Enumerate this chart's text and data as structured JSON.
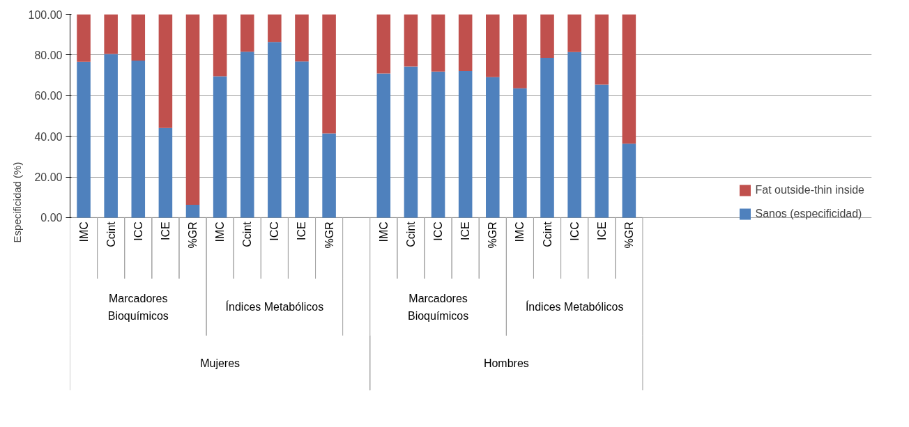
{
  "chart_data": {
    "type": "bar",
    "stacked": true,
    "ylabel": "Especificidad (%)",
    "categories": [
      "IMC",
      "Ccint",
      "ICC",
      "ICE",
      "%GR",
      "IMC",
      "Ccint",
      "ICC",
      "ICE",
      "%GR",
      null,
      "IMC",
      "Ccint",
      "ICC",
      "ICE",
      "%GR",
      "IMC",
      "Ccint",
      "ICC",
      "ICE",
      "%GR"
    ],
    "series": [
      {
        "name": "Sanos (especificidad)",
        "color": "#4f81bd",
        "values": [
          76.6,
          80.5,
          77.2,
          44.1,
          6.3,
          69.5,
          81.6,
          86.4,
          76.8,
          41.4,
          null,
          70.9,
          74.3,
          71.8,
          72.1,
          69.1,
          63.6,
          78.6,
          81.4,
          65.4,
          36.4
        ]
      },
      {
        "name": "Fat outside-thin inside",
        "color": "#c0504d",
        "values": [
          23.4,
          19.5,
          22.8,
          55.9,
          93.7,
          30.5,
          18.4,
          13.6,
          23.2,
          58.6,
          null,
          29.1,
          25.7,
          28.2,
          27.9,
          30.9,
          36.4,
          21.4,
          18.6,
          34.6,
          63.6
        ]
      }
    ],
    "ylim": [
      0,
      100
    ],
    "yticks": [
      {
        "value": 0,
        "label": "0.00"
      },
      {
        "value": 20,
        "label": "20.00"
      },
      {
        "value": 40,
        "label": "40.00"
      },
      {
        "value": 60,
        "label": "60.00"
      },
      {
        "value": 80,
        "label": "80.00"
      },
      {
        "value": 100,
        "label": "100.00"
      }
    ],
    "grid": "y",
    "legend": "right",
    "annotations": [
      "Marcadores\nBioquímicos",
      "Índices Metabólicos",
      "Marcadores\nBioquímicos",
      "Índices Metabólicos",
      "Mujeres",
      "Hombres"
    ]
  }
}
